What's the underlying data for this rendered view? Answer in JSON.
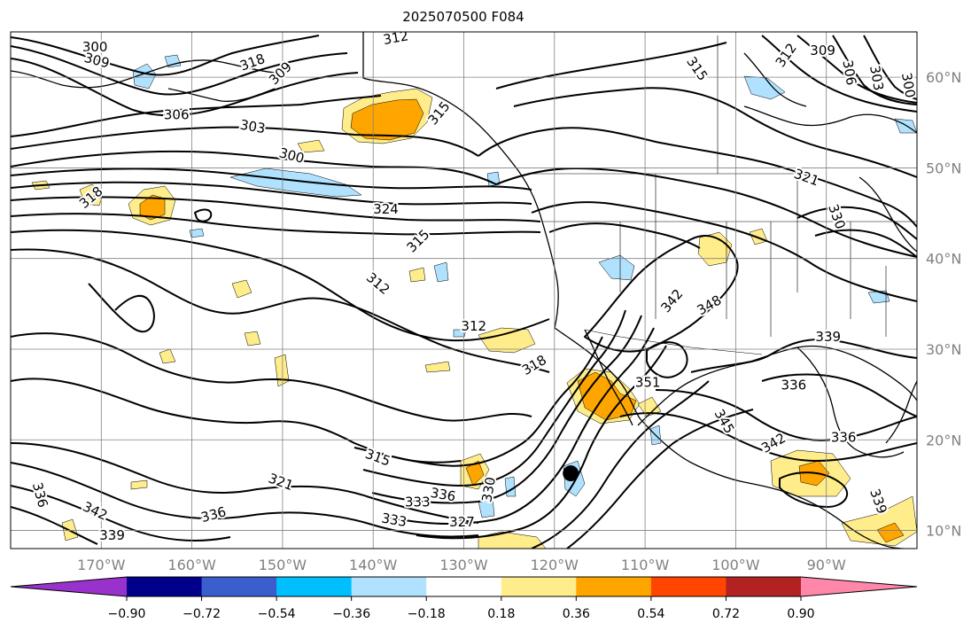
{
  "title": "2025070500 F084",
  "map": {
    "lon_range": [
      -180,
      -80
    ],
    "lat_range": [
      8,
      65
    ],
    "grid": true,
    "lon_ticks": [
      {
        "value": -170,
        "label": "170°W"
      },
      {
        "value": -160,
        "label": "160°W"
      },
      {
        "value": -150,
        "label": "150°W"
      },
      {
        "value": -140,
        "label": "140°W"
      },
      {
        "value": -130,
        "label": "130°W"
      },
      {
        "value": -120,
        "label": "120°W"
      },
      {
        "value": -110,
        "label": "110°W"
      },
      {
        "value": -100,
        "label": "100°W"
      },
      {
        "value": -90,
        "label": "90°W"
      }
    ],
    "lat_ticks": [
      {
        "value": 60,
        "label": "60°N"
      },
      {
        "value": 50,
        "label": "50°N"
      },
      {
        "value": 40,
        "label": "40°N"
      },
      {
        "value": 30,
        "label": "30°N"
      },
      {
        "value": 20,
        "label": "20°N"
      },
      {
        "value": 10,
        "label": "10°N"
      }
    ],
    "marker": {
      "lon": -118.2,
      "lat": 16.3,
      "color": "#000000"
    },
    "contour_labels": [
      {
        "text": "300",
        "lon": -170.7,
        "lat": 63.3,
        "rot": 0
      },
      {
        "text": "309",
        "lon": -170.5,
        "lat": 61.8,
        "rot": 15
      },
      {
        "text": "318",
        "lon": -153.3,
        "lat": 61.6,
        "rot": -20
      },
      {
        "text": "309",
        "lon": -150.2,
        "lat": 60.4,
        "rot": -45
      },
      {
        "text": "312",
        "lon": -137.5,
        "lat": 64.3,
        "rot": -10
      },
      {
        "text": "306",
        "lon": -161.7,
        "lat": 55.8,
        "rot": 0
      },
      {
        "text": "303",
        "lon": -153.3,
        "lat": 54.5,
        "rot": 10
      },
      {
        "text": "300",
        "lon": -149.0,
        "lat": 51.3,
        "rot": 15
      },
      {
        "text": "318",
        "lon": -171.1,
        "lat": 46.7,
        "rot": -40
      },
      {
        "text": "324",
        "lon": -138.6,
        "lat": 45.4,
        "rot": 0
      },
      {
        "text": "315",
        "lon": -132.7,
        "lat": 56.0,
        "rot": -50
      },
      {
        "text": "315",
        "lon": -135.0,
        "lat": 41.9,
        "rot": -45
      },
      {
        "text": "312",
        "lon": -139.5,
        "lat": 37.2,
        "rot": 40
      },
      {
        "text": "312",
        "lon": -128.9,
        "lat": 32.5,
        "rot": 0
      },
      {
        "text": "318",
        "lon": -122.2,
        "lat": 28.2,
        "rot": -30
      },
      {
        "text": "315",
        "lon": -139.5,
        "lat": 18.0,
        "rot": 20
      },
      {
        "text": "321",
        "lon": -150.2,
        "lat": 15.3,
        "rot": 20
      },
      {
        "text": "336",
        "lon": -157.6,
        "lat": 11.7,
        "rot": -15
      },
      {
        "text": "342",
        "lon": -170.7,
        "lat": 12.1,
        "rot": 25
      },
      {
        "text": "339",
        "lon": -168.8,
        "lat": 9.4,
        "rot": 0
      },
      {
        "text": "336",
        "lon": -176.8,
        "lat": 13.9,
        "rot": 75
      },
      {
        "text": "333",
        "lon": -137.7,
        "lat": 11.1,
        "rot": 10
      },
      {
        "text": "333",
        "lon": -135.1,
        "lat": 13.1,
        "rot": 0
      },
      {
        "text": "336",
        "lon": -132.3,
        "lat": 13.9,
        "rot": 10
      },
      {
        "text": "330",
        "lon": -127.2,
        "lat": 14.5,
        "rot": -80
      },
      {
        "text": "327",
        "lon": -130.2,
        "lat": 10.9,
        "rot": 0
      },
      {
        "text": "315",
        "lon": -104.3,
        "lat": 60.9,
        "rot": 55
      },
      {
        "text": "312",
        "lon": -94.4,
        "lat": 62.4,
        "rot": -55
      },
      {
        "text": "309",
        "lon": -90.4,
        "lat": 62.9,
        "rot": 0
      },
      {
        "text": "306",
        "lon": -87.5,
        "lat": 60.5,
        "rot": 80
      },
      {
        "text": "303",
        "lon": -84.5,
        "lat": 59.9,
        "rot": 80
      },
      {
        "text": "300",
        "lon": -81.0,
        "lat": 59.1,
        "rot": 80
      },
      {
        "text": "321",
        "lon": -92.2,
        "lat": 48.9,
        "rot": 20
      },
      {
        "text": "330",
        "lon": -88.9,
        "lat": 44.6,
        "rot": 70
      },
      {
        "text": "342",
        "lon": -107.0,
        "lat": 35.3,
        "rot": -50
      },
      {
        "text": "348",
        "lon": -102.9,
        "lat": 34.8,
        "rot": -30
      },
      {
        "text": "351",
        "lon": -109.7,
        "lat": 26.3,
        "rot": 0
      },
      {
        "text": "345",
        "lon": -101.3,
        "lat": 22.0,
        "rot": 60
      },
      {
        "text": "342",
        "lon": -95.8,
        "lat": 19.6,
        "rot": -30
      },
      {
        "text": "339",
        "lon": -89.8,
        "lat": 31.3,
        "rot": 0
      },
      {
        "text": "336",
        "lon": -93.6,
        "lat": 26.0,
        "rot": 0
      },
      {
        "text": "336",
        "lon": -88.1,
        "lat": 20.2,
        "rot": 0
      },
      {
        "text": "339",
        "lon": -84.3,
        "lat": 13.2,
        "rot": 70
      }
    ]
  },
  "colorbar": {
    "colors": [
      "#9932cc",
      "#00008b",
      "#3a5fcd",
      "#00bfff",
      "#b0e2ff",
      "#ffffff",
      "#ffec8b",
      "#ffa500",
      "#ff4500",
      "#b22222",
      "#ff88aa"
    ],
    "ticks": [
      "−0.90",
      "−0.72",
      "−0.54",
      "−0.36",
      "−0.18",
      "0.18",
      "0.36",
      "0.54",
      "0.72",
      "0.90"
    ]
  }
}
